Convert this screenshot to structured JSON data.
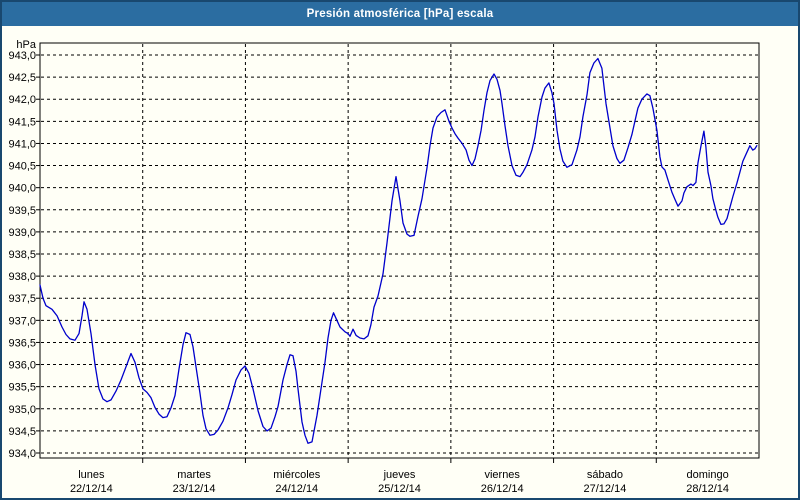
{
  "window": {
    "title": "Presión atmosférica [hPa] escala"
  },
  "colors": {
    "title_bar": "#2b6da1",
    "outer_border": "#19486f",
    "background": "#fffff6",
    "line": "#0000cc",
    "grid": "#000000",
    "text": "#000000"
  },
  "chart_data": {
    "type": "line",
    "title": "Presión atmosférica [hPa] escala",
    "grid": "dashed",
    "legend": "none",
    "y_axis": {
      "unit": "hPa",
      "min": 934.0,
      "max": 943.0,
      "step": 0.5,
      "tick_labels": [
        "943,0",
        "942,5",
        "942,0",
        "941,5",
        "941,0",
        "940,5",
        "940,0",
        "939,5",
        "939,0",
        "938,5",
        "938,0",
        "937,5",
        "937,0",
        "936,5",
        "936,0",
        "935,5",
        "935,0",
        "934,5",
        "934,0"
      ]
    },
    "x_axis": {
      "days": [
        {
          "name": "lunes",
          "date": "22/12/14"
        },
        {
          "name": "martes",
          "date": "23/12/14"
        },
        {
          "name": "miércoles",
          "date": "24/12/14"
        },
        {
          "name": "jueves",
          "date": "25/12/14"
        },
        {
          "name": "viernes",
          "date": "26/12/14"
        },
        {
          "name": "sábado",
          "date": "27/12/14"
        },
        {
          "name": "domingo",
          "date": "28/12/14"
        }
      ]
    },
    "series": [
      {
        "name": "Presión atmosférica [hPa]",
        "color": "#0000cc",
        "points": [
          [
            0.0,
            937.8
          ],
          [
            0.029,
            937.5
          ],
          [
            0.058,
            937.33
          ],
          [
            0.117,
            937.25
          ],
          [
            0.166,
            937.1
          ],
          [
            0.214,
            936.85
          ],
          [
            0.253,
            936.68
          ],
          [
            0.292,
            936.58
          ],
          [
            0.341,
            936.55
          ],
          [
            0.38,
            936.7
          ],
          [
            0.409,
            937.1
          ],
          [
            0.428,
            937.42
          ],
          [
            0.458,
            937.25
          ],
          [
            0.497,
            936.7
          ],
          [
            0.535,
            936.0
          ],
          [
            0.574,
            935.45
          ],
          [
            0.613,
            935.22
          ],
          [
            0.652,
            935.16
          ],
          [
            0.691,
            935.2
          ],
          [
            0.74,
            935.4
          ],
          [
            0.789,
            935.65
          ],
          [
            0.837,
            935.95
          ],
          [
            0.886,
            936.25
          ],
          [
            0.925,
            936.05
          ],
          [
            0.964,
            935.7
          ],
          [
            1.003,
            935.45
          ],
          [
            1.042,
            935.37
          ],
          [
            1.081,
            935.25
          ],
          [
            1.12,
            935.03
          ],
          [
            1.159,
            934.88
          ],
          [
            1.197,
            934.8
          ],
          [
            1.236,
            934.82
          ],
          [
            1.275,
            935.02
          ],
          [
            1.314,
            935.3
          ],
          [
            1.353,
            935.9
          ],
          [
            1.392,
            936.45
          ],
          [
            1.421,
            936.72
          ],
          [
            1.46,
            936.68
          ],
          [
            1.49,
            936.4
          ],
          [
            1.519,
            935.95
          ],
          [
            1.558,
            935.35
          ],
          [
            1.587,
            934.85
          ],
          [
            1.616,
            934.55
          ],
          [
            1.655,
            934.4
          ],
          [
            1.694,
            934.42
          ],
          [
            1.733,
            934.52
          ],
          [
            1.782,
            934.72
          ],
          [
            1.83,
            935.02
          ],
          [
            1.869,
            935.32
          ],
          [
            1.908,
            935.65
          ],
          [
            1.957,
            935.88
          ],
          [
            1.996,
            935.97
          ],
          [
            2.035,
            935.8
          ],
          [
            2.074,
            935.45
          ],
          [
            2.123,
            934.95
          ],
          [
            2.171,
            934.6
          ],
          [
            2.21,
            934.5
          ],
          [
            2.249,
            934.56
          ],
          [
            2.288,
            934.82
          ],
          [
            2.317,
            935.05
          ],
          [
            2.366,
            935.65
          ],
          [
            2.405,
            936.0
          ],
          [
            2.434,
            936.22
          ],
          [
            2.463,
            936.2
          ],
          [
            2.492,
            935.85
          ],
          [
            2.512,
            935.45
          ],
          [
            2.551,
            934.7
          ],
          [
            2.58,
            934.4
          ],
          [
            2.609,
            934.22
          ],
          [
            2.648,
            934.25
          ],
          [
            2.697,
            934.85
          ],
          [
            2.745,
            935.6
          ],
          [
            2.775,
            936.05
          ],
          [
            2.804,
            936.6
          ],
          [
            2.833,
            937.0
          ],
          [
            2.857,
            937.17
          ],
          [
            2.891,
            937.0
          ],
          [
            2.921,
            936.85
          ],
          [
            2.969,
            936.74
          ],
          [
            2.999,
            936.7
          ],
          [
            3.018,
            936.64
          ],
          [
            3.047,
            936.8
          ],
          [
            3.077,
            936.66
          ],
          [
            3.115,
            936.6
          ],
          [
            3.154,
            936.58
          ],
          [
            3.193,
            936.65
          ],
          [
            3.222,
            936.9
          ],
          [
            3.252,
            937.3
          ],
          [
            3.291,
            937.55
          ],
          [
            3.339,
            938.05
          ],
          [
            3.378,
            938.75
          ],
          [
            3.407,
            939.3
          ],
          [
            3.427,
            939.7
          ],
          [
            3.466,
            940.25
          ],
          [
            3.505,
            939.7
          ],
          [
            3.534,
            939.2
          ],
          [
            3.573,
            938.95
          ],
          [
            3.602,
            938.9
          ],
          [
            3.641,
            938.92
          ],
          [
            3.68,
            939.35
          ],
          [
            3.719,
            939.75
          ],
          [
            3.768,
            940.45
          ],
          [
            3.797,
            940.95
          ],
          [
            3.826,
            941.35
          ],
          [
            3.865,
            941.6
          ],
          [
            3.904,
            941.7
          ],
          [
            3.943,
            941.76
          ],
          [
            3.982,
            941.5
          ],
          [
            4.011,
            941.35
          ],
          [
            4.04,
            941.22
          ],
          [
            4.07,
            941.12
          ],
          [
            4.109,
            941.0
          ],
          [
            4.148,
            940.85
          ],
          [
            4.177,
            940.62
          ],
          [
            4.206,
            940.5
          ],
          [
            4.235,
            940.65
          ],
          [
            4.264,
            940.95
          ],
          [
            4.294,
            941.3
          ],
          [
            4.323,
            941.75
          ],
          [
            4.352,
            942.15
          ],
          [
            4.381,
            942.42
          ],
          [
            4.42,
            942.57
          ],
          [
            4.449,
            942.45
          ],
          [
            4.478,
            942.2
          ],
          [
            4.498,
            941.9
          ],
          [
            4.527,
            941.4
          ],
          [
            4.556,
            940.95
          ],
          [
            4.595,
            940.5
          ],
          [
            4.634,
            940.28
          ],
          [
            4.673,
            940.25
          ],
          [
            4.702,
            940.35
          ],
          [
            4.741,
            940.52
          ],
          [
            4.789,
            940.85
          ],
          [
            4.819,
            941.15
          ],
          [
            4.848,
            941.6
          ],
          [
            4.887,
            942.05
          ],
          [
            4.916,
            942.25
          ],
          [
            4.955,
            942.37
          ],
          [
            4.984,
            942.15
          ],
          [
            5.004,
            941.9
          ],
          [
            5.033,
            941.3
          ],
          [
            5.062,
            940.88
          ],
          [
            5.091,
            940.6
          ],
          [
            5.13,
            940.46
          ],
          [
            5.179,
            940.52
          ],
          [
            5.227,
            940.85
          ],
          [
            5.257,
            941.15
          ],
          [
            5.286,
            941.6
          ],
          [
            5.325,
            942.1
          ],
          [
            5.354,
            942.6
          ],
          [
            5.393,
            942.82
          ],
          [
            5.432,
            942.92
          ],
          [
            5.471,
            942.7
          ],
          [
            5.51,
            941.9
          ],
          [
            5.549,
            941.35
          ],
          [
            5.578,
            940.95
          ],
          [
            5.617,
            940.66
          ],
          [
            5.646,
            940.55
          ],
          [
            5.685,
            940.62
          ],
          [
            5.724,
            940.9
          ],
          [
            5.763,
            941.2
          ],
          [
            5.792,
            941.5
          ],
          [
            5.821,
            941.8
          ],
          [
            5.86,
            942.0
          ],
          [
            5.909,
            942.12
          ],
          [
            5.938,
            942.08
          ],
          [
            5.967,
            941.8
          ],
          [
            6.006,
            941.3
          ],
          [
            6.035,
            940.7
          ],
          [
            6.055,
            940.47
          ],
          [
            6.084,
            940.4
          ],
          [
            6.113,
            940.18
          ],
          [
            6.152,
            939.9
          ],
          [
            6.181,
            939.74
          ],
          [
            6.211,
            939.58
          ],
          [
            6.25,
            939.7
          ],
          [
            6.269,
            939.88
          ],
          [
            6.298,
            940.02
          ],
          [
            6.337,
            940.08
          ],
          [
            6.357,
            940.05
          ],
          [
            6.386,
            940.12
          ],
          [
            6.405,
            940.55
          ],
          [
            6.435,
            940.95
          ],
          [
            6.464,
            941.28
          ],
          [
            6.483,
            940.92
          ],
          [
            6.503,
            940.35
          ],
          [
            6.532,
            940.05
          ],
          [
            6.551,
            939.75
          ],
          [
            6.581,
            939.48
          ],
          [
            6.6,
            939.33
          ],
          [
            6.629,
            939.17
          ],
          [
            6.658,
            939.18
          ],
          [
            6.688,
            939.3
          ],
          [
            6.717,
            939.55
          ],
          [
            6.746,
            939.8
          ],
          [
            6.785,
            940.1
          ],
          [
            6.814,
            940.35
          ],
          [
            6.843,
            940.6
          ],
          [
            6.882,
            940.8
          ],
          [
            6.911,
            940.95
          ],
          [
            6.94,
            940.85
          ],
          [
            6.96,
            940.88
          ],
          [
            6.979,
            940.95
          ]
        ]
      }
    ]
  }
}
